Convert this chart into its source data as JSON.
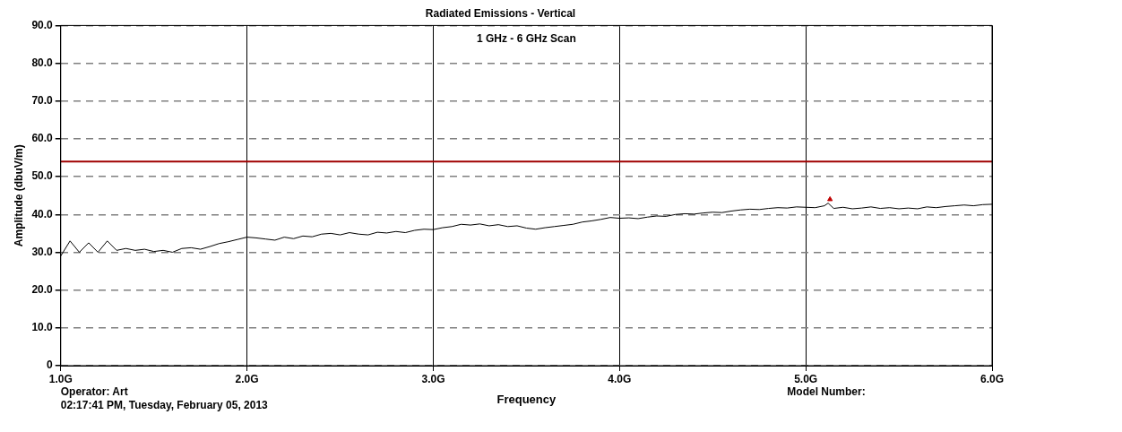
{
  "chart_data": {
    "type": "line",
    "title": "Radiated Emissions - Vertical",
    "xlabel": "Frequency",
    "ylabel": "Amplitude (dbuV/m)",
    "annotations": [
      "1 GHz - 6 GHz Scan",
      "Operator: Art",
      "02:17:41 PM, Tuesday, February 05, 2013",
      "Model Number:"
    ],
    "series": [
      {
        "color": "#000000",
        "x": [
          1.0,
          1.05,
          1.1,
          1.15,
          1.2,
          1.25,
          1.3,
          1.35,
          1.4,
          1.45,
          1.5,
          1.55,
          1.6,
          1.65,
          1.7,
          1.75,
          1.8,
          1.85,
          1.9,
          1.95,
          2.0,
          2.05,
          2.1,
          2.15,
          2.2,
          2.25,
          2.3,
          2.35,
          2.4,
          2.45,
          2.5,
          2.55,
          2.6,
          2.65,
          2.7,
          2.75,
          2.8,
          2.85,
          2.9,
          2.95,
          3.0,
          3.05,
          3.1,
          3.15,
          3.2,
          3.25,
          3.3,
          3.35,
          3.4,
          3.45,
          3.5,
          3.55,
          3.6,
          3.65,
          3.7,
          3.75,
          3.8,
          3.85,
          3.9,
          3.95,
          4.0,
          4.05,
          4.1,
          4.15,
          4.2,
          4.25,
          4.3,
          4.35,
          4.4,
          4.45,
          4.5,
          4.55,
          4.6,
          4.65,
          4.7,
          4.75,
          4.8,
          4.85,
          4.9,
          4.95,
          5.0,
          5.05,
          5.1,
          5.12,
          5.15,
          5.2,
          5.25,
          5.3,
          5.35,
          5.4,
          5.45,
          5.5,
          5.55,
          5.6,
          5.65,
          5.7,
          5.75,
          5.8,
          5.85,
          5.9,
          5.95,
          6.0
        ],
        "values": [
          29,
          33,
          30,
          32.5,
          30,
          33,
          30.5,
          31,
          30.5,
          30.8,
          30.2,
          30.5,
          30,
          31,
          31.2,
          30.8,
          31.5,
          32.3,
          32.8,
          33.4,
          34,
          33.8,
          33.5,
          33.2,
          34,
          33.6,
          34.3,
          34.1,
          34.8,
          35,
          34.6,
          35.2,
          34.8,
          34.6,
          35.3,
          35.1,
          35.5,
          35.2,
          35.8,
          36.1,
          36,
          36.5,
          36.8,
          37.4,
          37.2,
          37.5,
          37,
          37.3,
          36.8,
          37,
          36.4,
          36.1,
          36.5,
          36.8,
          37.1,
          37.4,
          38,
          38.3,
          38.7,
          39.2,
          39,
          39.1,
          38.9,
          39.3,
          39.6,
          39.5,
          40,
          40.2,
          40.1,
          40.4,
          40.6,
          40.5,
          40.9,
          41.2,
          41.4,
          41.3,
          41.6,
          41.8,
          41.7,
          42,
          41.9,
          41.8,
          42.3,
          43,
          41.6,
          41.9,
          41.5,
          41.7,
          42,
          41.6,
          41.8,
          41.5,
          41.7,
          41.5,
          42,
          41.8,
          42.1,
          42.3,
          42.5,
          42.3,
          42.6,
          42.7
        ]
      },
      {
        "type": "scatter",
        "color": "#c00000",
        "marker": "triangle",
        "x": [
          5.13
        ],
        "values": [
          44
        ]
      }
    ],
    "ref_lines": [
      {
        "axis": "y",
        "value": 54,
        "color": "#a00000",
        "line_style": "solid"
      }
    ],
    "xlim": [
      1,
      6
    ],
    "xticks": [
      {
        "value": 1,
        "label": "1.0G"
      },
      {
        "value": 2,
        "label": "2.0G"
      },
      {
        "value": 3,
        "label": "3.0G"
      },
      {
        "value": 4,
        "label": "4.0G"
      },
      {
        "value": 5,
        "label": "5.0G"
      },
      {
        "value": 6,
        "label": "6.0G"
      }
    ],
    "ylim": [
      0,
      90
    ],
    "yticks": [
      0,
      {
        "value": 10,
        "label": "10.0"
      },
      {
        "value": 20,
        "label": "20.0"
      },
      {
        "value": 30,
        "label": "30.0"
      },
      {
        "value": 40,
        "label": "40.0"
      },
      {
        "value": 50,
        "label": "50.0"
      },
      {
        "value": 60,
        "label": "60.0"
      },
      {
        "value": 70,
        "label": "70.0"
      },
      {
        "value": 80,
        "label": "80.0"
      },
      {
        "value": 90,
        "label": "90.0"
      }
    ],
    "grid": true,
    "legend": false,
    "marker": "none",
    "line_style": "solid"
  }
}
